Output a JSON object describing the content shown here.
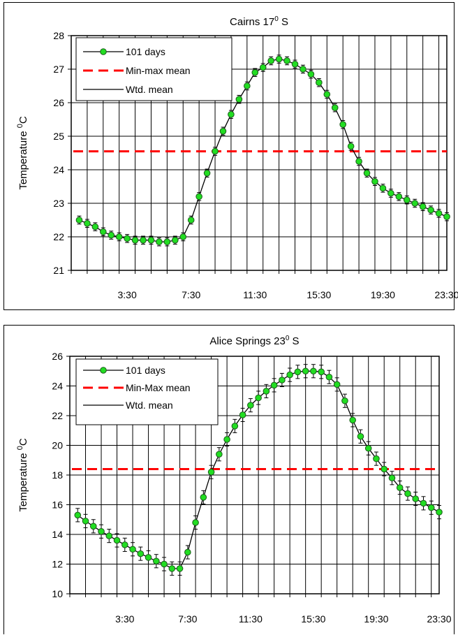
{
  "chart_data": [
    {
      "type": "line",
      "title": "Cairns 17",
      "title_sup": "0",
      "title_suffix": " S",
      "ylabel": "Temperature",
      "ylabel_sup": "0",
      "ylabel_unit": "C",
      "ylim": [
        21,
        28
      ],
      "yticks": [
        21,
        22,
        23,
        24,
        25,
        26,
        27,
        28
      ],
      "xlim": [
        0,
        23.5
      ],
      "xticks": [
        3.5,
        7.5,
        11.5,
        15.5,
        19.5,
        23.5
      ],
      "xtick_labels": [
        "3:30",
        "7:30",
        "11:30",
        "15:30",
        "19:30",
        "23:30"
      ],
      "grid": true,
      "legend_position": "top-left",
      "legend": [
        {
          "label": "101 days",
          "style": "marker-line"
        },
        {
          "label": "Min-max mean",
          "style": "dashed"
        },
        {
          "label": "Wtd. mean",
          "style": "solid"
        }
      ],
      "series": [
        {
          "name": "101 days",
          "x": [
            0.5,
            1.0,
            1.5,
            2.0,
            2.5,
            3.0,
            3.5,
            4.0,
            4.5,
            5.0,
            5.5,
            6.0,
            6.5,
            7.0,
            7.5,
            8.0,
            8.5,
            9.0,
            9.5,
            10.0,
            10.5,
            11.0,
            11.5,
            12.0,
            12.5,
            13.0,
            13.5,
            14.0,
            14.5,
            15.0,
            15.5,
            16.0,
            16.5,
            17.0,
            17.5,
            18.0,
            18.5,
            19.0,
            19.5,
            20.0,
            20.5,
            21.0,
            21.5,
            22.0,
            22.5,
            23.0,
            23.5
          ],
          "y": [
            22.5,
            22.4,
            22.3,
            22.15,
            22.05,
            22.0,
            21.95,
            21.9,
            21.9,
            21.9,
            21.85,
            21.85,
            21.9,
            22.0,
            22.5,
            23.2,
            23.9,
            24.55,
            25.15,
            25.65,
            26.1,
            26.5,
            26.9,
            27.05,
            27.25,
            27.3,
            27.25,
            27.15,
            27.0,
            26.85,
            26.6,
            26.25,
            25.85,
            25.35,
            24.7,
            24.25,
            23.9,
            23.65,
            23.45,
            23.3,
            23.2,
            23.1,
            23.0,
            22.9,
            22.8,
            22.7,
            22.6
          ],
          "error": 0.12
        },
        {
          "name": "Min-max mean",
          "y": 24.55
        },
        {
          "name": "Wtd. mean",
          "y": [
            22.5,
            22.4,
            22.3,
            22.15,
            22.05,
            22.0,
            21.95,
            21.9,
            21.9,
            21.9,
            21.85,
            21.85,
            21.9,
            22.0,
            22.5,
            23.2,
            23.9,
            24.55,
            25.15,
            25.65,
            26.1,
            26.5,
            26.9,
            27.05,
            27.25,
            27.3,
            27.25,
            27.15,
            27.0,
            26.85,
            26.6,
            26.25,
            25.85,
            25.35,
            24.7,
            24.25,
            23.9,
            23.65,
            23.45,
            23.3,
            23.2,
            23.1,
            23.0,
            22.9,
            22.8,
            22.7,
            22.6
          ]
        }
      ]
    },
    {
      "type": "line",
      "title": "Alice Springs  23",
      "title_sup": "0",
      "title_suffix": " S",
      "ylabel": "Temperature",
      "ylabel_sup": "0",
      "ylabel_unit": "C",
      "ylim": [
        10,
        26
      ],
      "yticks": [
        10,
        12,
        14,
        16,
        18,
        20,
        22,
        24,
        26
      ],
      "xlim": [
        0,
        23.5
      ],
      "xticks": [
        3.5,
        7.5,
        11.5,
        15.5,
        19.5,
        23.5
      ],
      "xtick_labels": [
        "3:30",
        "7:30",
        "11:30",
        "15:30",
        "19:30",
        "23:30"
      ],
      "grid": true,
      "legend_position": "top-left",
      "legend": [
        {
          "label": "101 days",
          "style": "marker-line"
        },
        {
          "label": "Min-Max mean",
          "style": "dashed"
        },
        {
          "label": "Wtd. mean",
          "style": "solid"
        }
      ],
      "series": [
        {
          "name": "101 days",
          "x": [
            0.5,
            1.0,
            1.5,
            2.0,
            2.5,
            3.0,
            3.5,
            4.0,
            4.5,
            5.0,
            5.5,
            6.0,
            6.5,
            7.0,
            7.5,
            8.0,
            8.5,
            9.0,
            9.5,
            10.0,
            10.5,
            11.0,
            11.5,
            12.0,
            12.5,
            13.0,
            13.5,
            14.0,
            14.5,
            15.0,
            15.5,
            16.0,
            16.5,
            17.0,
            17.5,
            18.0,
            18.5,
            19.0,
            19.5,
            20.0,
            20.5,
            21.0,
            21.5,
            22.0,
            22.5,
            23.0,
            23.5
          ],
          "y": [
            15.3,
            14.9,
            14.55,
            14.2,
            13.9,
            13.6,
            13.3,
            13.0,
            12.7,
            12.45,
            12.2,
            12.0,
            11.7,
            11.7,
            12.8,
            14.8,
            16.5,
            18.2,
            19.4,
            20.4,
            21.3,
            22.05,
            22.7,
            23.2,
            23.65,
            24.05,
            24.4,
            24.75,
            24.95,
            25.0,
            25.0,
            24.95,
            24.6,
            24.1,
            23.0,
            21.7,
            20.6,
            19.8,
            19.1,
            18.4,
            17.8,
            17.15,
            16.75,
            16.4,
            16.1,
            15.8,
            15.5
          ],
          "error": 0.45
        },
        {
          "name": "Min-Max mean",
          "y": 18.4
        },
        {
          "name": "Wtd. mean",
          "y": [
            15.3,
            14.9,
            14.55,
            14.2,
            13.9,
            13.6,
            13.3,
            13.0,
            12.7,
            12.45,
            12.2,
            12.0,
            11.7,
            11.7,
            12.8,
            14.8,
            16.5,
            18.2,
            19.4,
            20.4,
            21.3,
            22.05,
            22.7,
            23.2,
            23.65,
            24.05,
            24.4,
            24.75,
            24.95,
            25.0,
            25.0,
            24.95,
            24.6,
            24.1,
            23.0,
            21.7,
            20.6,
            19.8,
            19.1,
            18.4,
            17.8,
            17.15,
            16.75,
            16.4,
            16.1,
            15.8,
            15.5
          ]
        }
      ]
    }
  ],
  "colors": {
    "marker_fill": "#22dd22",
    "marker_stroke": "#1a5a1a",
    "mean_line": "#ff0000",
    "grid": "#000000",
    "axis": "#000000",
    "background": "#ffffff"
  }
}
